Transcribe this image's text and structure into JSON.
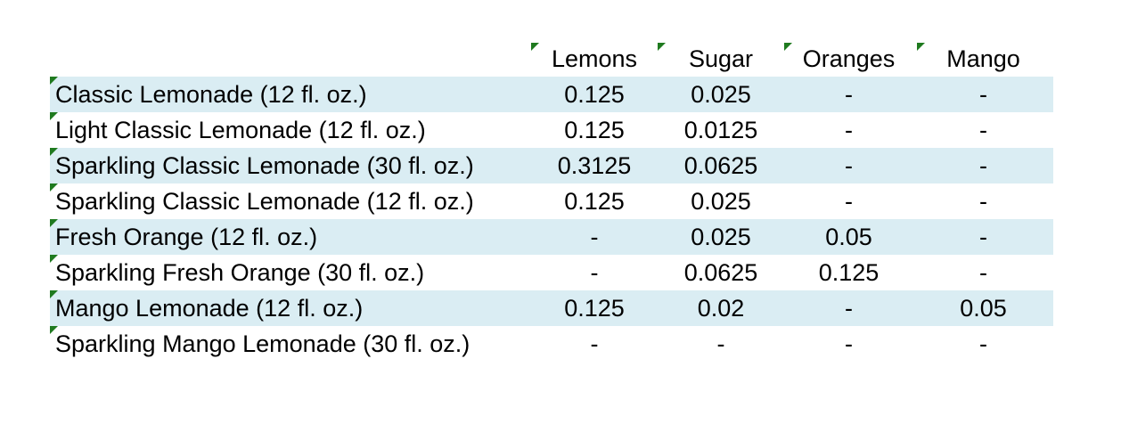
{
  "columns": {
    "lemons": "Lemons",
    "sugar": "Sugar",
    "oranges": "Oranges",
    "mango": "Mango"
  },
  "colors": {
    "row_shade": "#daedf3",
    "comment_marker": "#1f7a1f"
  },
  "rows": [
    {
      "name": "Classic Lemonade (12 fl. oz.)",
      "lemons": "0.125",
      "sugar": "0.025",
      "oranges": "-",
      "mango": "-"
    },
    {
      "name": "Light Classic Lemonade (12 fl. oz.)",
      "lemons": "0.125",
      "sugar": "0.0125",
      "oranges": "-",
      "mango": "-"
    },
    {
      "name": "Sparkling Classic Lemonade (30 fl. oz.)",
      "lemons": "0.3125",
      "sugar": "0.0625",
      "oranges": "-",
      "mango": "-"
    },
    {
      "name": "Sparkling Classic Lemonade (12 fl. oz.)",
      "lemons": "0.125",
      "sugar": "0.025",
      "oranges": "-",
      "mango": "-"
    },
    {
      "name": "Fresh Orange (12 fl. oz.)",
      "lemons": "-",
      "sugar": "0.025",
      "oranges": "0.05",
      "mango": "-"
    },
    {
      "name": "Sparkling Fresh Orange (30 fl. oz.)",
      "lemons": "-",
      "sugar": "0.0625",
      "oranges": "0.125",
      "mango": "-"
    },
    {
      "name": "Mango Lemonade (12 fl. oz.)",
      "lemons": "0.125",
      "sugar": "0.02",
      "oranges": "-",
      "mango": "0.05"
    },
    {
      "name": "Sparkling Mango Lemonade (30 fl. oz.)",
      "lemons": "-",
      "sugar": "-",
      "oranges": "-",
      "mango": "-"
    }
  ]
}
